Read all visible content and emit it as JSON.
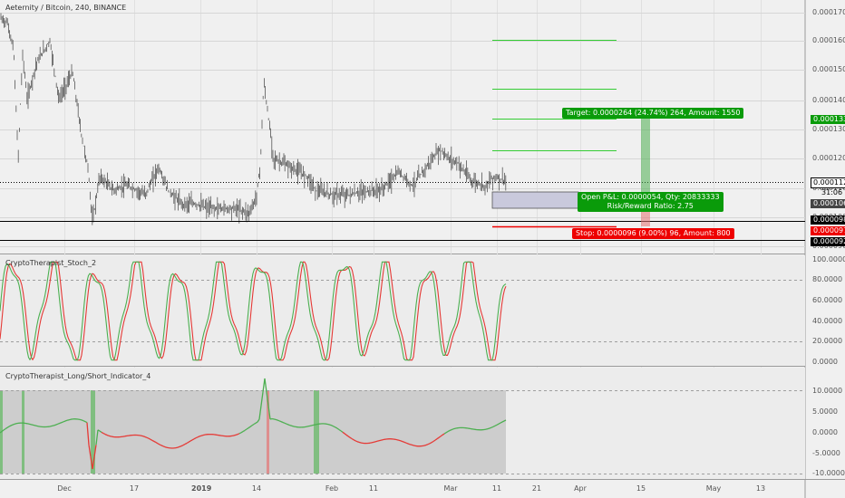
{
  "header": {
    "symbol_title": "Aeternity / Bitcoin, 240, BINANCE"
  },
  "panes": {
    "stoch_title": "CryptoTherapist_Stoch_2",
    "ls_title": "CryptoTherapist_Long/Short_Indicator_4"
  },
  "price_axis": {
    "ticks": [
      "0.0001700",
      "0.0001600",
      "0.0001500",
      "0.0001400",
      "0.0001300",
      "0.0001200",
      "0.0001100",
      "0.0001000",
      "0.0000900"
    ],
    "tags": {
      "target": "0.0001331",
      "last": "0.0001121",
      "countdown": "31:06",
      "entry": "0.0001067",
      "support": "0.0000989",
      "stop": "0.0000971",
      "low": "0.0000921"
    }
  },
  "stoch_axis": {
    "ticks": [
      "100.0000",
      "80.0000",
      "60.0000",
      "40.0000",
      "20.0000",
      "0.0000"
    ]
  },
  "ls_axis": {
    "ticks": [
      "10.0000",
      "5.0000",
      "0.0000",
      "-5.0000",
      "-10.0000"
    ]
  },
  "time_axis": {
    "ticks": [
      "Dec",
      "17",
      "2019",
      "14",
      "Feb",
      "11",
      "Mar",
      "11",
      "21",
      "Apr",
      "15",
      "May",
      "13"
    ]
  },
  "trade": {
    "target_label": "Target: 0.0000264 (24.74%) 264, Amount: 1550",
    "pnl_label": "Open P&L: 0.0000054, Qty: 20833333",
    "rr_label": "Risk/Reward Ratio: 2.75",
    "stop_label": "Stop: 0.0000096 (9.00%) 96, Amount: 800"
  },
  "colors": {
    "green": "#4caf50",
    "red": "#e53935",
    "target_bg": "#0a9b0a",
    "stop_bg": "#ee0000",
    "entry_zone": "#c9c9dc"
  }
}
